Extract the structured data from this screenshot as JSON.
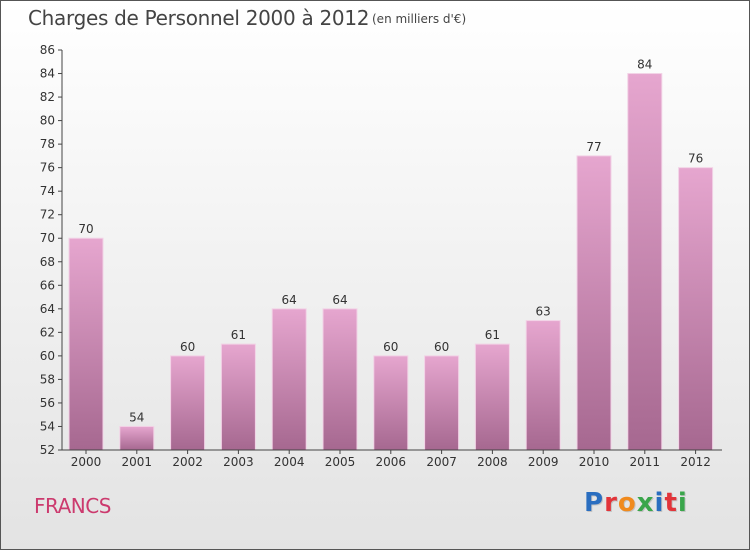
{
  "header": {
    "title": "Charges de Personnel 2000 à 2012",
    "subtitle": "(en milliers d'€)"
  },
  "footer": {
    "commune": "FRANCS",
    "logo_text": "Proxiti"
  },
  "colors": {
    "bar_top": "#e6a6cf",
    "bar_bottom": "#a66890",
    "commune_text": "#cc3a6e",
    "logo_letters": [
      "#2a6ec0",
      "#e2343a",
      "#f08a1d",
      "#3aa64b",
      "#2a6ec0",
      "#e2343a",
      "#3aa64b"
    ]
  },
  "chart_data": {
    "type": "bar",
    "categories": [
      "2000",
      "2001",
      "2002",
      "2003",
      "2004",
      "2005",
      "2006",
      "2007",
      "2008",
      "2009",
      "2010",
      "2011",
      "2012"
    ],
    "values": [
      70,
      54,
      60,
      61,
      64,
      64,
      60,
      60,
      61,
      63,
      77,
      84,
      76
    ],
    "ylim": [
      52,
      86
    ],
    "yticks": [
      52,
      54,
      56,
      58,
      60,
      62,
      64,
      66,
      68,
      70,
      72,
      74,
      76,
      78,
      80,
      82,
      84,
      86
    ],
    "grid": false,
    "data_labels": true
  }
}
